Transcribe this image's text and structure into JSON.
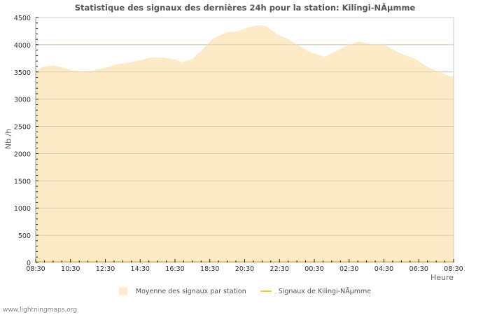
{
  "chart_data": {
    "type": "area",
    "title": "Statistique des signaux des dernières 24h pour la station: Kilingi-NÃµmme",
    "xlabel": "Heure",
    "ylabel": "Nb /h",
    "ylim": [
      0,
      4500
    ],
    "yticks": [
      0,
      500,
      1000,
      1500,
      2000,
      2500,
      3000,
      3500,
      4000,
      4500
    ],
    "xtick_labels": [
      "08:30",
      "10:30",
      "12:30",
      "14:30",
      "16:30",
      "18:30",
      "20:30",
      "22:30",
      "00:30",
      "02:30",
      "04:30",
      "06:30",
      "08:30"
    ],
    "grid": true,
    "legend_position": "bottom",
    "series": [
      {
        "name": "Moyenne des signaux par station",
        "kind": "area",
        "color": "#fdebc8",
        "x_hours": [
          0,
          0.4,
          1.0,
          1.6,
          2.0,
          2.6,
          3.2,
          4.0,
          4.6,
          5.2,
          6.0,
          6.6,
          7.4,
          8.0,
          8.4,
          9.0,
          9.6,
          10.2,
          11.0,
          11.6,
          12.2,
          12.8,
          13.2,
          13.8,
          14.4,
          15.0,
          15.6,
          16.2,
          16.6,
          17.4,
          18.0,
          18.6,
          19.2,
          20.0,
          20.6,
          21.2,
          21.8,
          22.4,
          23.0,
          23.8
        ],
        "values": [
          3520,
          3590,
          3625,
          3575,
          3535,
          3510,
          3520,
          3575,
          3640,
          3665,
          3715,
          3765,
          3765,
          3730,
          3680,
          3740,
          3920,
          4115,
          4230,
          4245,
          4320,
          4360,
          4345,
          4205,
          4115,
          4010,
          3885,
          3820,
          3780,
          3905,
          4000,
          4060,
          4010,
          4000,
          3900,
          3810,
          3740,
          3610,
          3520,
          3420
        ]
      },
      {
        "name": "Signaux de Kilingi-NÃµmme",
        "kind": "line",
        "color": "#f5c842",
        "values_note": "at 0 throughout",
        "values": [
          0,
          0,
          0,
          0,
          0,
          0,
          0,
          0,
          0,
          0,
          0,
          0,
          0
        ]
      }
    ]
  },
  "page": {
    "title": "Statistique des signaux des dernières 24h pour la station: Kilingi-NÃµmme",
    "ylabel": "Nb /h",
    "xlabel": "Heure",
    "legend": {
      "area_label": "Moyenne des signaux par station",
      "line_label": "Signaux de Kilingi-NÃµmme"
    },
    "footer": "www.lightningmaps.org",
    "colors": {
      "area": "#fdebc8",
      "line": "#f5c842",
      "grid_outside": "#cccccc",
      "grid_inside": "#d8c8a8",
      "axis_text": "#333333"
    }
  }
}
